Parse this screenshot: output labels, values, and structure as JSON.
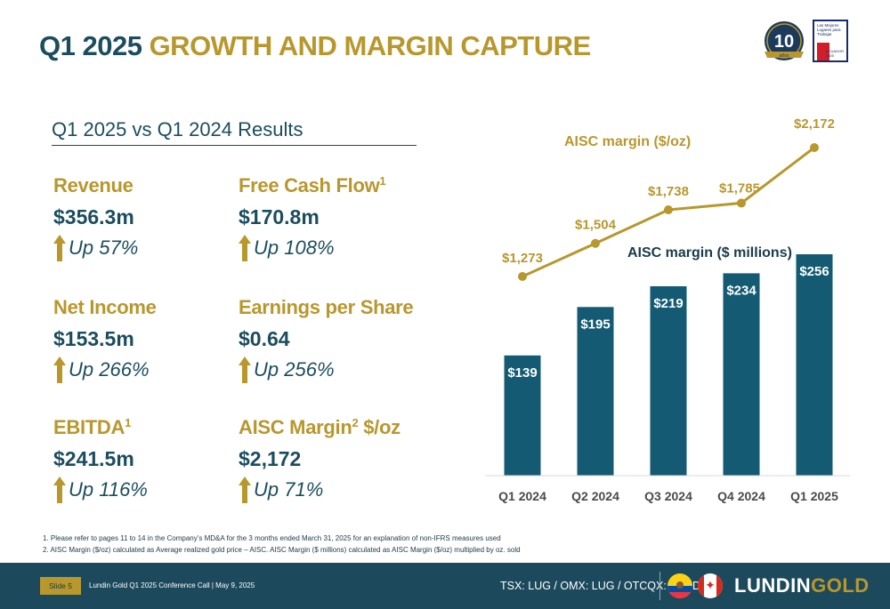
{
  "title": {
    "part1": "Q1 2025",
    "part2": "GROWTH AND MARGIN CAPTURE"
  },
  "badges": {
    "anniversary_number": "10",
    "anniversary_word": "años",
    "gptw_text": [
      "Las Mejores",
      "Lugares para",
      "Trabajar"
    ],
    "gptw_country": "ECUADOR",
    "gptw_year": "2025"
  },
  "subtitle": "Q1 2025 vs Q1 2024 Results",
  "metrics": [
    {
      "label": "Revenue",
      "sup": "",
      "value": "$356.3m",
      "change": "Up 57%"
    },
    {
      "label": "Free Cash Flow",
      "sup": "1",
      "value": "$170.8m",
      "change": "Up 108%"
    },
    {
      "label": "Net Income",
      "sup": "",
      "value": "$153.5m",
      "change": "Up 266%"
    },
    {
      "label": "Earnings per Share",
      "sup": "",
      "value": "$0.64",
      "change": "Up 256%"
    },
    {
      "label": "EBITDA",
      "sup": "1",
      "value": "$241.5m",
      "change": "Up 116%"
    },
    {
      "label": "AISC Margin",
      "sup": "2",
      "value": "$2,172",
      "change": "Up 71%",
      "suffix": " $/oz"
    }
  ],
  "chart_data": {
    "type": "bar",
    "categories": [
      "Q1 2024",
      "Q2 2024",
      "Q3 2024",
      "Q4 2024",
      "Q1 2025"
    ],
    "series": [
      {
        "name": "AISC margin ($ millions)",
        "type": "bar",
        "values": [
          139,
          195,
          219,
          234,
          256
        ],
        "labels": [
          "$139",
          "$195",
          "$219",
          "$234",
          "$256"
        ],
        "color": "#145a72"
      },
      {
        "name": "AISC margin ($/oz)",
        "type": "line",
        "values": [
          1273,
          1504,
          1738,
          1785,
          2172
        ],
        "labels": [
          "$1,273",
          "$1,504",
          "$1,738",
          "$1,785",
          "$2,172"
        ],
        "color": "#b8972d"
      }
    ],
    "ylim_bars": [
      0,
      300
    ],
    "grid": false
  },
  "footnotes": [
    "1.   Please refer to pages 11 to 14 in the Company’s MD&A for the 3 months ended March 31, 2025 for an explanation of non-IFRS measures used",
    "2.   AISC Margin ($/oz) calculated as Average realized gold price – AISC.  AISC Margin ($ millions) calculated as AISC Margin ($/oz) multiplied by oz. sold"
  ],
  "footer": {
    "slide": "Slide 5",
    "event": "Lundin Gold Q1 2025 Conference Call | May 9, 2025",
    "tickers": "TSX: LUG / OMX: LUG / OTCQX: LUGDF",
    "brand_part1": "LUNDIN",
    "brand_part2": "GOLD"
  },
  "colors": {
    "navy": "#1b4d5e",
    "gold": "#b8972d",
    "bar": "#145a72",
    "footer": "#1c4a5c"
  }
}
